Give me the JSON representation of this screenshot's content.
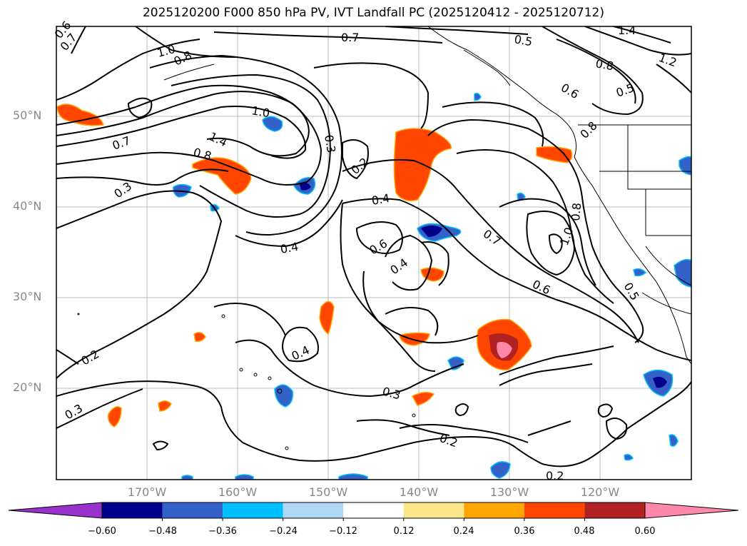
{
  "title": "2025120200 F000 850 hPa PV, IVT Landfall PC (2025120412 - 2025120712)",
  "map": {
    "lat_labels": [
      "50°N",
      "40°N",
      "30°N",
      "20°N"
    ],
    "lon_labels": [
      "170°W",
      "160°W",
      "150°W",
      "140°W",
      "130°W",
      "120°W"
    ],
    "contour_labels": [
      {
        "text": "0.6",
        "name": "contour-label"
      },
      {
        "text": "0.7",
        "name": "contour-label"
      },
      {
        "text": "1.0",
        "name": "contour-label"
      },
      {
        "text": "0.8",
        "name": "contour-label"
      },
      {
        "text": "0.7",
        "name": "contour-label"
      },
      {
        "text": "0.5",
        "name": "contour-label"
      },
      {
        "text": "1.4",
        "name": "contour-label"
      },
      {
        "text": "1.2",
        "name": "contour-label"
      },
      {
        "text": "0.8",
        "name": "contour-label"
      },
      {
        "text": "0.6",
        "name": "contour-label"
      },
      {
        "text": "0.5",
        "name": "contour-label"
      },
      {
        "text": "1.0",
        "name": "contour-label"
      },
      {
        "text": "0.7",
        "name": "contour-label"
      },
      {
        "text": "1.4",
        "name": "contour-label"
      },
      {
        "text": "0.8",
        "name": "contour-label"
      },
      {
        "text": "0.3",
        "name": "contour-label"
      },
      {
        "text": "0.2",
        "name": "contour-label"
      },
      {
        "text": "0.3",
        "name": "contour-label"
      },
      {
        "text": "0.4",
        "name": "contour-label"
      },
      {
        "text": "0.8",
        "name": "contour-label"
      },
      {
        "text": "0.4",
        "name": "contour-label"
      },
      {
        "text": "0.6",
        "name": "contour-label"
      },
      {
        "text": "0.7",
        "name": "contour-label"
      },
      {
        "text": "0.8",
        "name": "contour-label"
      },
      {
        "text": "1.0",
        "name": "contour-label"
      },
      {
        "text": "0.4",
        "name": "contour-label"
      },
      {
        "text": "0.6",
        "name": "contour-label"
      },
      {
        "text": "0.5",
        "name": "contour-label"
      },
      {
        "text": "0.4",
        "name": "contour-label"
      },
      {
        "text": "0.2",
        "name": "contour-label"
      },
      {
        "text": "0.3",
        "name": "contour-label"
      },
      {
        "text": "0.3",
        "name": "contour-label"
      },
      {
        "text": "0.2",
        "name": "contour-label"
      },
      {
        "text": "0.2",
        "name": "contour-label"
      }
    ]
  },
  "colorbar": {
    "ticks": [
      "−0.60",
      "−0.48",
      "−0.36",
      "−0.24",
      "−0.12",
      "0.12",
      "0.24",
      "0.36",
      "0.48",
      "0.60"
    ],
    "colors": [
      "#9932cc",
      "#00008b",
      "#3461c8",
      "#00bfff",
      "#add8f5",
      "#ffffff",
      "#fde68a",
      "#ffa500",
      "#ff4500",
      "#b22222",
      "#ff88aa"
    ]
  }
}
